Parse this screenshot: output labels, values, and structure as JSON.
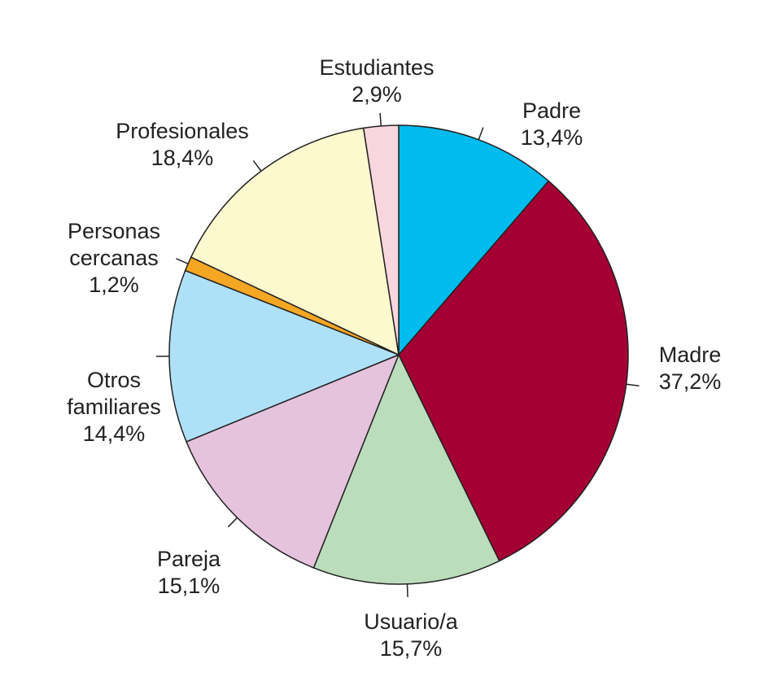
{
  "chart_data": {
    "type": "pie",
    "categories": [
      "Padre",
      "Madre",
      "Usuario/a",
      "Pareja",
      "Otros familiares",
      "Personas cercanas",
      "Profesionales",
      "Estudiantes"
    ],
    "values": [
      13.4,
      37.2,
      15.7,
      15.1,
      14.4,
      1.2,
      18.4,
      2.9
    ],
    "value_labels": [
      "13,4%",
      "37,2%",
      "15,7%",
      "15,1%",
      "14,4%",
      "1,2%",
      "18,4%",
      "2,9%"
    ],
    "colors": [
      "#00bbee",
      "#a50034",
      "#bbddbb",
      "#e6c3dd",
      "#aee0f8",
      "#f5a623",
      "#fdf9cf",
      "#f9d6dd"
    ]
  }
}
